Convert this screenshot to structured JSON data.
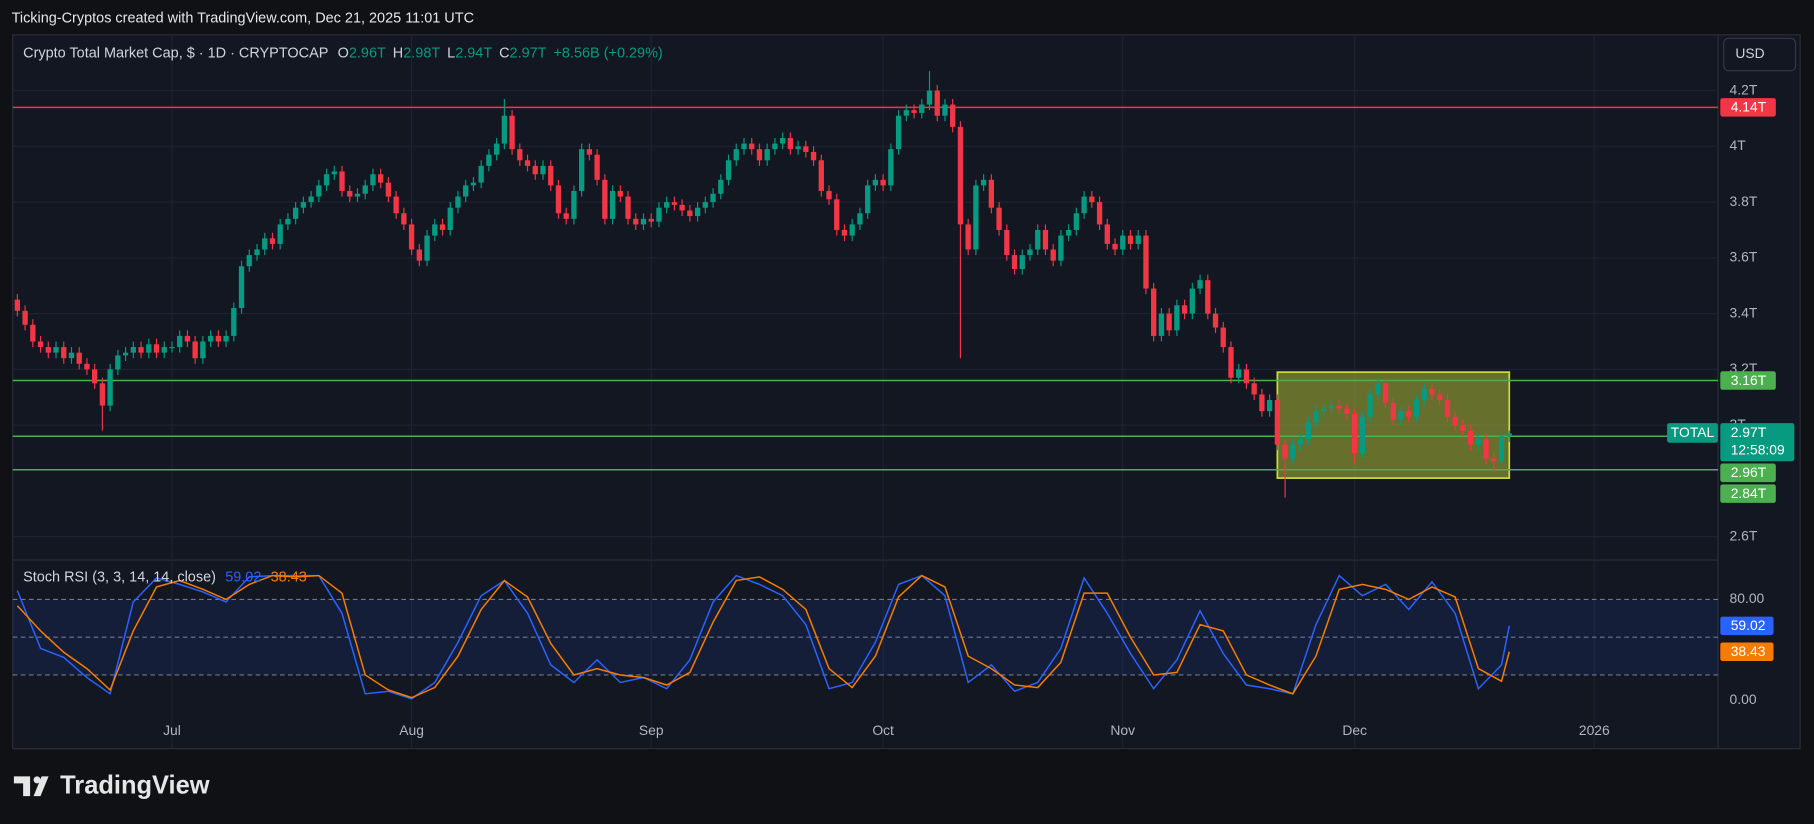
{
  "header": "Ticking-Cryptos created with TradingView.com, Dec 21, 2025 11:01 UTC",
  "brand": "TradingView",
  "currency": "USD",
  "chart_data": [
    {
      "type": "candlestick",
      "title": "Crypto Total Market Cap, $ · 1D · CRYPTOCAP",
      "ohlc_keys": [
        "O",
        "H",
        "L",
        "C"
      ],
      "ohlc_labels": [
        "2.96T",
        "2.98T",
        "2.94T",
        "2.97T"
      ],
      "change": "+8.56B (+0.29%)",
      "symbol": "TOTAL",
      "last_label": "2.97T",
      "countdown": "12:58:09",
      "up_color": "#089981",
      "down_color": "#f23645",
      "xlim": [
        -0.6,
        220
      ],
      "xticks": [
        {
          "value": 20,
          "label": "Jul"
        },
        {
          "value": 51,
          "label": "Aug"
        },
        {
          "value": 82,
          "label": "Sep"
        },
        {
          "value": 112,
          "label": "Oct"
        },
        {
          "value": 143,
          "label": "Nov"
        },
        {
          "value": 173,
          "label": "Dec"
        },
        {
          "value": 204,
          "label": "2026"
        }
      ],
      "ylim": [
        2.52,
        4.4
      ],
      "yticks": [
        {
          "value": 2.6,
          "label": "2.6T"
        },
        {
          "value": 3,
          "label": "3T"
        },
        {
          "value": 3.2,
          "label": "3.2T"
        },
        {
          "value": 3.4,
          "label": "3.4T"
        },
        {
          "value": 3.6,
          "label": "3.6T"
        },
        {
          "value": 3.8,
          "label": "3.8T"
        },
        {
          "value": 4,
          "label": "4T"
        },
        {
          "value": 4.2,
          "label": "4.2T"
        }
      ],
      "grid": true,
      "levels": [
        {
          "value": 4.14,
          "label": "4.14T",
          "color": "#f23645"
        },
        {
          "value": 3.16,
          "label": "3.16T",
          "color": "#4caf50"
        },
        {
          "value": 2.96,
          "label": "2.96T",
          "color": "#4caf50"
        },
        {
          "value": 2.84,
          "label": "2.84T",
          "color": "#4caf50"
        }
      ],
      "zone": {
        "x": [
          163,
          193
        ],
        "y": [
          2.81,
          3.19
        ],
        "color": "#cddc39"
      },
      "open": [
        3.45,
        3.41,
        3.36,
        3.3,
        3.28,
        3.26,
        3.28,
        3.24,
        3.26,
        3.22,
        3.2,
        3.15,
        3.07,
        3.2,
        3.25,
        3.26,
        3.28,
        3.26,
        3.29,
        3.26,
        3.28,
        3.28,
        3.32,
        3.3,
        3.24,
        3.3,
        3.32,
        3.3,
        3.32,
        3.42,
        3.57,
        3.61,
        3.63,
        3.67,
        3.65,
        3.72,
        3.74,
        3.78,
        3.8,
        3.82,
        3.86,
        3.9,
        3.91,
        3.84,
        3.82,
        3.83,
        3.86,
        3.9,
        3.87,
        3.82,
        3.76,
        3.72,
        3.63,
        3.59,
        3.68,
        3.72,
        3.7,
        3.78,
        3.82,
        3.86,
        3.87,
        3.93,
        3.97,
        4.01,
        4.11,
        3.99,
        3.95,
        3.93,
        3.9,
        3.93,
        3.86,
        3.76,
        3.74,
        3.84,
        3.99,
        3.97,
        3.88,
        3.74,
        3.84,
        3.82,
        3.74,
        3.72,
        3.74,
        3.73,
        3.78,
        3.8,
        3.79,
        3.77,
        3.75,
        3.78,
        3.8,
        3.83,
        3.88,
        3.95,
        3.99,
        4.01,
        3.99,
        3.95,
        3.99,
        4.01,
        4.03,
        3.99,
        4.0,
        3.98,
        3.95,
        3.84,
        3.81,
        3.7,
        3.68,
        3.72,
        3.76,
        3.86,
        3.88,
        3.86,
        3.99,
        4.11,
        4.13,
        4.12,
        4.15,
        4.2,
        4.11,
        4.15,
        4.07,
        3.72,
        3.63,
        3.86,
        3.88,
        3.78,
        3.7,
        3.61,
        3.56,
        3.61,
        3.63,
        3.7,
        3.63,
        3.59,
        3.68,
        3.7,
        3.76,
        3.82,
        3.8,
        3.72,
        3.65,
        3.63,
        3.68,
        3.65,
        3.68,
        3.49,
        3.32,
        3.4,
        3.34,
        3.43,
        3.4,
        3.49,
        3.52,
        3.4,
        3.35,
        3.28,
        3.17,
        3.2,
        3.15,
        3.11,
        3.05,
        3.09,
        2.93,
        2.88,
        2.93,
        2.95,
        3.01,
        3.05,
        3.06,
        3.07,
        3.06,
        3.04,
        2.9,
        3.03,
        3.11,
        3.15,
        3.08,
        3.02,
        3.05,
        3.03,
        3.09,
        3.13,
        3.11,
        3.09,
        3.03,
        3.0,
        2.98,
        2.93,
        2.95,
        2.88,
        2.87,
        2.96
      ],
      "high": [
        3.47,
        3.43,
        3.38,
        3.32,
        3.3,
        3.3,
        3.3,
        3.28,
        3.28,
        3.24,
        3.22,
        3.17,
        3.22,
        3.27,
        3.28,
        3.3,
        3.3,
        3.31,
        3.31,
        3.3,
        3.3,
        3.34,
        3.34,
        3.32,
        3.32,
        3.34,
        3.34,
        3.34,
        3.44,
        3.59,
        3.63,
        3.65,
        3.69,
        3.69,
        3.74,
        3.76,
        3.8,
        3.82,
        3.84,
        3.88,
        3.92,
        3.93,
        3.93,
        3.86,
        3.85,
        3.88,
        3.92,
        3.92,
        3.89,
        3.84,
        3.78,
        3.74,
        3.65,
        3.7,
        3.74,
        3.74,
        3.8,
        3.84,
        3.88,
        3.89,
        3.95,
        3.99,
        4.03,
        4.17,
        4.13,
        4.01,
        3.97,
        3.95,
        3.95,
        3.95,
        3.88,
        3.78,
        3.86,
        4.01,
        4.01,
        3.99,
        3.9,
        3.86,
        3.86,
        3.84,
        3.76,
        3.76,
        3.76,
        3.8,
        3.82,
        3.82,
        3.81,
        3.79,
        3.8,
        3.82,
        3.85,
        3.9,
        3.97,
        4.01,
        4.03,
        4.03,
        4.01,
        4.01,
        4.03,
        4.05,
        4.05,
        4.02,
        4.02,
        4.0,
        3.97,
        3.86,
        3.83,
        3.72,
        3.74,
        3.78,
        3.88,
        3.9,
        3.9,
        4.01,
        4.13,
        4.15,
        4.15,
        4.17,
        4.27,
        4.22,
        4.17,
        4.17,
        4.09,
        3.74,
        3.88,
        3.9,
        3.9,
        3.8,
        3.72,
        3.63,
        3.63,
        3.65,
        3.72,
        3.72,
        3.65,
        3.7,
        3.72,
        3.78,
        3.84,
        3.84,
        3.82,
        3.74,
        3.67,
        3.7,
        3.7,
        3.7,
        3.7,
        3.51,
        3.42,
        3.42,
        3.45,
        3.45,
        3.51,
        3.54,
        3.54,
        3.42,
        3.37,
        3.3,
        3.22,
        3.22,
        3.17,
        3.13,
        3.11,
        3.11,
        2.95,
        2.95,
        2.97,
        3.03,
        3.07,
        3.08,
        3.09,
        3.09,
        3.08,
        3.06,
        3.05,
        3.13,
        3.17,
        3.17,
        3.1,
        3.07,
        3.07,
        3.11,
        3.15,
        3.15,
        3.13,
        3.11,
        3.05,
        3.02,
        3.0,
        2.97,
        2.97,
        2.9,
        2.98,
        2.98
      ],
      "low": [
        3.39,
        3.34,
        3.28,
        3.26,
        3.24,
        3.24,
        3.22,
        3.22,
        3.2,
        3.18,
        3.13,
        2.98,
        3.05,
        3.18,
        3.23,
        3.24,
        3.24,
        3.24,
        3.24,
        3.24,
        3.26,
        3.26,
        3.28,
        3.22,
        3.22,
        3.28,
        3.28,
        3.28,
        3.3,
        3.4,
        3.55,
        3.59,
        3.61,
        3.63,
        3.63,
        3.7,
        3.72,
        3.76,
        3.78,
        3.8,
        3.84,
        3.88,
        3.82,
        3.8,
        3.8,
        3.81,
        3.84,
        3.85,
        3.8,
        3.74,
        3.7,
        3.61,
        3.57,
        3.57,
        3.66,
        3.68,
        3.68,
        3.76,
        3.8,
        3.84,
        3.85,
        3.91,
        3.95,
        3.99,
        3.97,
        3.93,
        3.91,
        3.88,
        3.88,
        3.84,
        3.74,
        3.72,
        3.72,
        3.82,
        3.95,
        3.86,
        3.72,
        3.72,
        3.8,
        3.72,
        3.7,
        3.7,
        3.71,
        3.71,
        3.76,
        3.77,
        3.75,
        3.73,
        3.73,
        3.76,
        3.78,
        3.81,
        3.86,
        3.93,
        3.97,
        3.97,
        3.93,
        3.93,
        3.97,
        3.99,
        3.97,
        3.97,
        3.96,
        3.93,
        3.82,
        3.79,
        3.68,
        3.66,
        3.66,
        3.7,
        3.74,
        3.84,
        3.84,
        3.84,
        3.97,
        4.09,
        4.1,
        4.1,
        4.13,
        4.09,
        4.09,
        4.05,
        3.24,
        3.61,
        3.61,
        3.84,
        3.76,
        3.68,
        3.59,
        3.54,
        3.54,
        3.59,
        3.61,
        3.61,
        3.57,
        3.57,
        3.66,
        3.68,
        3.74,
        3.78,
        3.7,
        3.63,
        3.61,
        3.61,
        3.63,
        3.63,
        3.47,
        3.3,
        3.3,
        3.32,
        3.32,
        3.38,
        3.38,
        3.47,
        3.38,
        3.33,
        3.26,
        3.15,
        3.15,
        3.13,
        3.09,
        3.03,
        3.03,
        2.91,
        2.74,
        2.86,
        2.91,
        2.93,
        2.99,
        3.03,
        3.04,
        3.04,
        3.02,
        2.86,
        2.88,
        3.01,
        3.09,
        3.06,
        3.0,
        3.0,
        3.01,
        3.01,
        3.07,
        3.09,
        3.07,
        3.01,
        2.98,
        2.96,
        2.91,
        2.91,
        2.86,
        2.83,
        2.85,
        2.94
      ],
      "close": [
        3.41,
        3.36,
        3.3,
        3.28,
        3.26,
        3.28,
        3.24,
        3.26,
        3.22,
        3.2,
        3.15,
        3.07,
        3.2,
        3.25,
        3.26,
        3.28,
        3.26,
        3.29,
        3.26,
        3.28,
        3.28,
        3.32,
        3.3,
        3.24,
        3.3,
        3.32,
        3.3,
        3.32,
        3.42,
        3.57,
        3.61,
        3.63,
        3.67,
        3.65,
        3.72,
        3.74,
        3.78,
        3.8,
        3.82,
        3.86,
        3.9,
        3.91,
        3.84,
        3.82,
        3.83,
        3.86,
        3.9,
        3.87,
        3.82,
        3.76,
        3.72,
        3.63,
        3.59,
        3.68,
        3.72,
        3.7,
        3.78,
        3.82,
        3.86,
        3.87,
        3.93,
        3.97,
        4.01,
        4.11,
        3.99,
        3.95,
        3.93,
        3.9,
        3.93,
        3.86,
        3.76,
        3.74,
        3.84,
        3.99,
        3.97,
        3.88,
        3.74,
        3.84,
        3.82,
        3.74,
        3.72,
        3.74,
        3.73,
        3.78,
        3.8,
        3.79,
        3.77,
        3.75,
        3.78,
        3.8,
        3.83,
        3.88,
        3.95,
        3.99,
        4.01,
        3.99,
        3.95,
        3.99,
        4.01,
        4.03,
        3.99,
        4.0,
        3.98,
        3.95,
        3.84,
        3.81,
        3.7,
        3.68,
        3.72,
        3.76,
        3.86,
        3.88,
        3.86,
        3.99,
        4.11,
        4.13,
        4.12,
        4.15,
        4.2,
        4.11,
        4.15,
        4.07,
        3.72,
        3.63,
        3.86,
        3.88,
        3.78,
        3.7,
        3.61,
        3.56,
        3.61,
        3.63,
        3.7,
        3.63,
        3.59,
        3.68,
        3.7,
        3.76,
        3.82,
        3.8,
        3.72,
        3.65,
        3.63,
        3.68,
        3.65,
        3.68,
        3.49,
        3.32,
        3.4,
        3.34,
        3.43,
        3.4,
        3.49,
        3.52,
        3.4,
        3.35,
        3.28,
        3.17,
        3.2,
        3.15,
        3.11,
        3.05,
        3.09,
        2.93,
        2.88,
        2.93,
        2.95,
        3.01,
        3.05,
        3.06,
        3.07,
        3.06,
        3.04,
        2.9,
        3.03,
        3.11,
        3.15,
        3.08,
        3.02,
        3.05,
        3.03,
        3.09,
        3.13,
        3.11,
        3.09,
        3.03,
        3.0,
        2.98,
        2.93,
        2.95,
        2.88,
        2.87,
        2.96,
        2.97
      ]
    },
    {
      "type": "line",
      "title": "Stoch RSI (3, 3, 14, 14, close)",
      "x": [
        0,
        3,
        6,
        9,
        12,
        15,
        18,
        21,
        24,
        27,
        30,
        33,
        36,
        39,
        42,
        45,
        48,
        51,
        54,
        57,
        60,
        63,
        66,
        69,
        72,
        75,
        78,
        81,
        84,
        87,
        90,
        93,
        96,
        99,
        102,
        105,
        108,
        111,
        114,
        117,
        120,
        123,
        126,
        129,
        132,
        135,
        138,
        141,
        144,
        147,
        150,
        153,
        156,
        159,
        162,
        165,
        168,
        171,
        174,
        177,
        180,
        183,
        186,
        189,
        192,
        193
      ],
      "ylim": [
        -38.6,
        111.3
      ],
      "yticks": [
        {
          "value": 80,
          "label": "80.00"
        },
        {
          "value": 0,
          "label": "0.00"
        }
      ],
      "levels": [
        80,
        50,
        20
      ],
      "series": [
        {
          "color": "#2962ff",
          "values": [
            87,
            41,
            34,
            18,
            5,
            78,
            97,
            92,
            86,
            78,
            98,
            99,
            99,
            99,
            69,
            5,
            7,
            1,
            14,
            46,
            83,
            95,
            69,
            28,
            14,
            32,
            14,
            18,
            9,
            32,
            78,
            99,
            92,
            83,
            60,
            9,
            14,
            46,
            92,
            99,
            83,
            14,
            28,
            7,
            14,
            41,
            97,
            69,
            37,
            9,
            32,
            71,
            37,
            12,
            9,
            5,
            60,
            99,
            83,
            92,
            72,
            94,
            69,
            9,
            28,
            59.02
          ]
        },
        {
          "color": "#f57c00",
          "values": [
            75,
            55,
            38,
            25,
            8,
            55,
            90,
            95,
            88,
            80,
            92,
            99,
            98,
            99,
            85,
            20,
            8,
            2,
            10,
            35,
            72,
            95,
            82,
            45,
            20,
            25,
            20,
            18,
            12,
            22,
            62,
            95,
            98,
            88,
            72,
            25,
            10,
            35,
            82,
            99,
            90,
            35,
            25,
            12,
            10,
            30,
            85,
            85,
            50,
            20,
            22,
            60,
            55,
            20,
            12,
            5,
            35,
            88,
            92,
            88,
            80,
            90,
            82,
            25,
            15,
            38.43
          ]
        }
      ]
    }
  ]
}
